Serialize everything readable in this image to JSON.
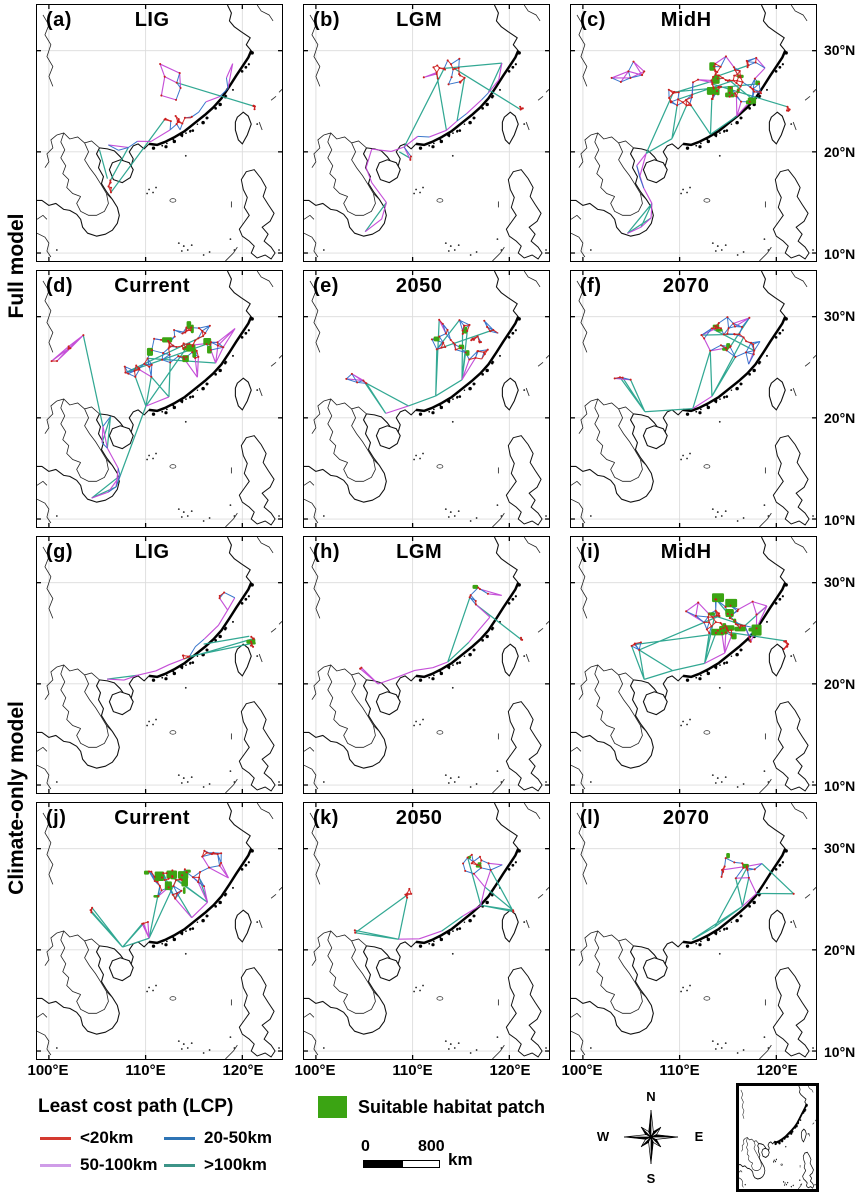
{
  "figure": {
    "row_groups": [
      {
        "label": "Full model"
      },
      {
        "label": "Climate-only model"
      }
    ],
    "panels": [
      {
        "id": "(a)",
        "title": "LIG",
        "row": 0,
        "col": 0,
        "net": {
          "seed": 11,
          "k": 2,
          "extra": 3,
          "bands": [
            {
              "path": "coast",
              "n": 14,
              "j": 4
            }
          ],
          "clusters": [
            [
              141,
              116,
              21,
              6,
              12
            ],
            [
              219,
              103,
              4,
              5,
              5
            ],
            [
              73,
              184,
              5,
              10,
              5
            ],
            [
              134,
              77,
              34,
              22,
              7
            ]
          ],
          "patches": 0,
          "psize": 0,
          "pc": [
            0
          ],
          "links": [
            [
              71,
              175,
              63,
              146
            ]
          ]
        }
      },
      {
        "id": "(b)",
        "title": "LGM",
        "row": 0,
        "col": 1,
        "net": {
          "seed": 22,
          "k": 2,
          "extra": 5,
          "bands": [
            {
              "path": "coast",
              "n": 12,
              "j": 4
            },
            {
              "path": "vn",
              "n": 5,
              "j": 3
            }
          ],
          "clusters": [
            [
              153,
              71,
              34,
              20,
              22
            ],
            [
              219,
              104,
              3,
              4,
              4
            ],
            [
              108,
              155,
              3,
              3,
              2
            ]
          ],
          "patches": 0,
          "psize": 0,
          "pc": [
            0
          ],
          "links": [
            [
              108,
              155,
              96,
              148
            ]
          ]
        }
      },
      {
        "id": "(c)",
        "title": "MidH",
        "row": 0,
        "col": 2,
        "net": {
          "seed": 33,
          "k": 3,
          "extra": 7,
          "bands": [
            {
              "path": "coast",
              "n": 6,
              "j": 4
            },
            {
              "path": "vn",
              "n": 7,
              "j": 3
            }
          ],
          "clusters": [
            [
              158,
              76,
              42,
              26,
              64
            ],
            [
              109,
              94,
              18,
              13,
              16
            ],
            [
              57,
              73,
              26,
              18,
              7
            ],
            [
              219,
              105,
              4,
              4,
              5
            ]
          ],
          "patches": 12,
          "psize": 8,
          "pc": [
            0
          ]
        }
      },
      {
        "id": "(d)",
        "title": "Current",
        "row": 1,
        "col": 0,
        "net": {
          "seed": 44,
          "k": 3,
          "extra": 7,
          "bands": [
            {
              "path": "coast",
              "n": 6,
              "j": 4
            },
            {
              "path": "vn",
              "n": 8,
              "j": 3
            }
          ],
          "clusters": [
            [
              148,
              76,
              42,
              26,
              55
            ],
            [
              99,
              99,
              18,
              15,
              12
            ],
            [
              30,
              78,
              20,
              20,
              6
            ]
          ],
          "patches": 10,
          "psize": 8,
          "pc": [
            0
          ]
        }
      },
      {
        "id": "(e)",
        "title": "2050",
        "row": 1,
        "col": 1,
        "net": {
          "seed": 55,
          "k": 3,
          "extra": 5,
          "bands": [
            {
              "path": "coast",
              "n": 6,
              "j": 4
            }
          ],
          "clusters": [
            [
              163,
              70,
              37,
              24,
              40
            ],
            [
              53,
              107,
              20,
              12,
              5
            ]
          ],
          "patches": 5,
          "psize": 6,
          "pc": [
            0
          ]
        }
      },
      {
        "id": "(f)",
        "title": "2070",
        "row": 1,
        "col": 2,
        "net": {
          "seed": 66,
          "k": 3,
          "extra": 4,
          "bands": [
            {
              "path": "coast",
              "n": 5,
              "j": 4
            }
          ],
          "clusters": [
            [
              164,
              69,
              35,
              23,
              34
            ],
            [
              49,
              109,
              14,
              9,
              4
            ]
          ],
          "patches": 4,
          "psize": 5,
          "pc": [
            0
          ]
        }
      },
      {
        "id": "(g)",
        "title": "LIG",
        "row": 2,
        "col": 0,
        "net": {
          "seed": 77,
          "k": 2,
          "extra": 2,
          "bands": [
            {
              "path": "coast",
              "n": 11,
              "j": 3
            }
          ],
          "clusters": [
            [
              218,
              106,
              3,
              7,
              7
            ],
            [
              151,
              120,
              8,
              4,
              4
            ],
            [
              185,
              59,
              12,
              10,
              3
            ]
          ],
          "patches": 3,
          "psize": 5,
          "pc": [
            0
          ],
          "links": [
            [
              168,
              108,
              214,
              100
            ]
          ]
        }
      },
      {
        "id": "(h)",
        "title": "LGM",
        "row": 2,
        "col": 1,
        "net": {
          "seed": 88,
          "k": 2,
          "extra": 2,
          "bands": [
            {
              "path": "coast",
              "n": 9,
              "j": 3
            }
          ],
          "clusters": [
            [
              176,
              60,
              18,
              12,
              7
            ],
            [
              219,
              103,
              3,
              3,
              3
            ],
            [
              58,
              131,
              3,
              3,
              2
            ]
          ],
          "patches": 1,
          "psize": 4,
          "pc": [
            0
          ]
        }
      },
      {
        "id": "(i)",
        "title": "MidH",
        "row": 2,
        "col": 2,
        "net": {
          "seed": 99,
          "k": 3,
          "extra": 7,
          "bands": [
            {
              "path": "coast",
              "n": 6,
              "j": 4
            }
          ],
          "clusters": [
            [
              153,
              84,
              41,
              24,
              50
            ],
            [
              216,
              108,
              5,
              8,
              6
            ],
            [
              67,
              111,
              18,
              9,
              5
            ]
          ],
          "patches": 15,
          "psize": 11,
          "pc": [
            0
          ]
        }
      },
      {
        "id": "(j)",
        "title": "Current",
        "row": 3,
        "col": 0,
        "net": {
          "seed": 111,
          "k": 3,
          "extra": 6,
          "bands": [
            {
              "path": "coast",
              "n": 5,
              "j": 4
            }
          ],
          "clusters": [
            [
              139,
              78,
              32,
              20,
              34
            ],
            [
              176,
              56,
              14,
              10,
              10
            ],
            [
              54,
              108,
              6,
              4,
              3
            ],
            [
              108,
              121,
              5,
              4,
              3
            ]
          ],
          "patches": 11,
          "psize": 9,
          "pc": [
            0
          ]
        }
      },
      {
        "id": "(k)",
        "title": "2050",
        "row": 3,
        "col": 1,
        "net": {
          "seed": 122,
          "k": 2,
          "extra": 4,
          "bands": [
            {
              "path": "coast",
              "n": 7,
              "j": 4,
              "f": 0.12,
              "t": 1
            }
          ],
          "clusters": [
            [
              176,
              62,
              20,
              12,
              14
            ],
            [
              103,
              90,
              10,
              7,
              6
            ],
            [
              50,
              129,
              5,
              3,
              2
            ],
            [
              211,
              110,
              2,
              3,
              2
            ]
          ],
          "patches": 3,
          "psize": 6,
          "pc": [
            0,
            2
          ]
        }
      },
      {
        "id": "(l)",
        "title": "2070",
        "row": 3,
        "col": 2,
        "net": {
          "seed": 133,
          "k": 2,
          "extra": 4,
          "bands": [
            {
              "path": "coast",
              "n": 5,
              "j": 4,
              "f": 0.3,
              "t": 1
            }
          ],
          "clusters": [
            [
              166,
              65,
              27,
              17,
              14
            ],
            [
              225,
              93,
              2,
              2,
              1
            ]
          ],
          "patches": 2,
          "psize": 4,
          "pc": [
            0
          ]
        }
      }
    ],
    "axis": {
      "lat_labels": [
        "30°N",
        "20°N",
        "10°N"
      ],
      "lon_labels": [
        "100°E",
        "110°E",
        "120°E"
      ]
    },
    "legend": {
      "title": "Least cost path (LCP)",
      "items": [
        {
          "label": "<20km",
          "color": "#d43a30",
          "map_color": "#d42222"
        },
        {
          "label": "20-50km",
          "color": "#2e74b5",
          "map_color": "#2e6fc8"
        },
        {
          "label": "50-100km",
          "color": "#cf9ce8",
          "map_color": "#c247d6"
        },
        {
          "label": ">100km",
          "color": "#3d9488",
          "map_color": "#27a38d"
        }
      ]
    },
    "habitat": {
      "label": "Suitable habitat patch",
      "color": "#3ba413"
    },
    "scale_bar": {
      "start": "0",
      "end": "800",
      "unit": "km"
    },
    "compass": {
      "n": "N",
      "e": "E",
      "s": "S",
      "w": "W"
    }
  }
}
